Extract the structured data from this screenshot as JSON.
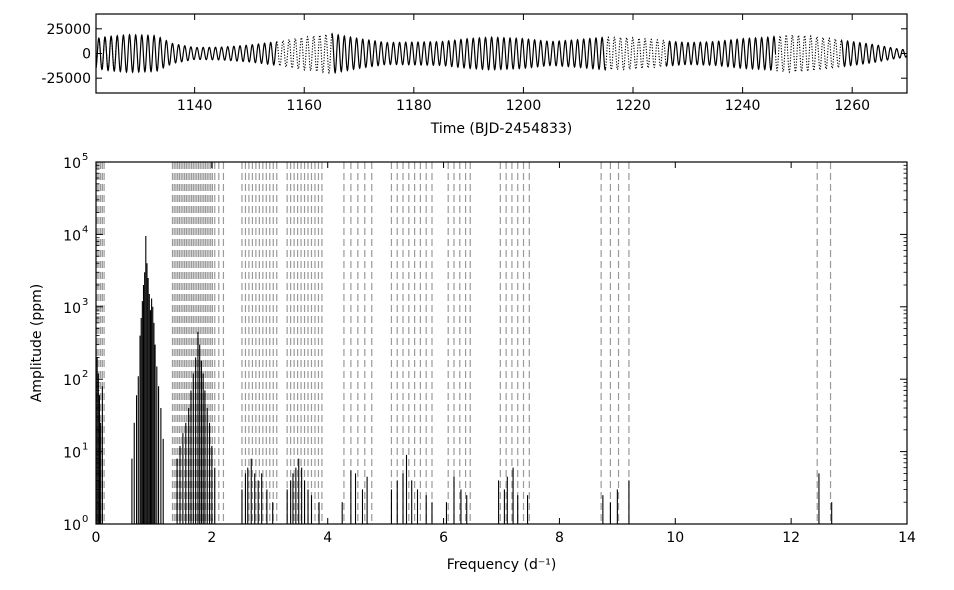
{
  "chart_data": [
    {
      "type": "line",
      "xlabel": "Time (BJD-2454833)",
      "ylabel": "",
      "xlim": [
        1122,
        1270
      ],
      "ylim": [
        -40000,
        40000
      ],
      "xticks": [
        1140,
        1160,
        1180,
        1200,
        1220,
        1240,
        1260
      ],
      "xtick_labels": [
        "1140",
        "1160",
        "1180",
        "1200",
        "1220",
        "1240",
        "1260"
      ],
      "yticks": [
        25000,
        0,
        -25000
      ],
      "ytick_labels": [
        "25000",
        "0",
        "-25000"
      ],
      "series": [
        {
          "style": "solid",
          "color": "#000000",
          "carrier_period_days": 1.12,
          "segments": [
            [
              1122,
              1155
            ],
            [
              1165,
              1215
            ],
            [
              1226,
              1246
            ],
            [
              1258,
              1270
            ]
          ],
          "envelope": [
            [
              1122,
              15000
            ],
            [
              1124,
              17000
            ],
            [
              1128,
              19000
            ],
            [
              1133,
              18000
            ],
            [
              1136,
              10000
            ],
            [
              1140,
              6000
            ],
            [
              1145,
              6500
            ],
            [
              1150,
              8500
            ],
            [
              1155,
              12000
            ],
            [
              1158,
              15000
            ],
            [
              1162,
              18000
            ],
            [
              1165,
              20000
            ],
            [
              1170,
              15000
            ],
            [
              1175,
              11000
            ],
            [
              1180,
              11500
            ],
            [
              1185,
              12000
            ],
            [
              1190,
              15000
            ],
            [
              1194,
              16500
            ],
            [
              1200,
              15000
            ],
            [
              1205,
              12000
            ],
            [
              1210,
              14000
            ],
            [
              1215,
              16500
            ],
            [
              1220,
              16000
            ],
            [
              1225,
              13000
            ],
            [
              1230,
              11000
            ],
            [
              1235,
              12000
            ],
            [
              1240,
              15000
            ],
            [
              1245,
              16500
            ],
            [
              1248,
              19000
            ],
            [
              1252,
              18000
            ],
            [
              1256,
              15000
            ],
            [
              1260,
              12000
            ],
            [
              1264,
              9000
            ],
            [
              1268,
              5000
            ],
            [
              1270,
              3500
            ]
          ]
        },
        {
          "style": "dotted",
          "color": "#000000",
          "carrier_period_days": 1.12,
          "segments": [
            [
              1122,
              1126
            ],
            [
              1155,
              1165
            ],
            [
              1215,
              1226
            ],
            [
              1246,
              1258
            ]
          ],
          "envelope": [
            [
              1122,
              15000
            ],
            [
              1124,
              17000
            ],
            [
              1126,
              18000
            ],
            [
              1155,
              12000
            ],
            [
              1158,
              15000
            ],
            [
              1162,
              18000
            ],
            [
              1165,
              20000
            ],
            [
              1215,
              16500
            ],
            [
              1220,
              16000
            ],
            [
              1226,
              13000
            ],
            [
              1246,
              17000
            ],
            [
              1248,
              19000
            ],
            [
              1252,
              18000
            ],
            [
              1258,
              14000
            ]
          ]
        }
      ]
    },
    {
      "type": "bar",
      "xlabel": "Frequency (d⁻¹)",
      "ylabel": "Amplitude (ppm)",
      "xlim": [
        0,
        14
      ],
      "yscale": "log",
      "ylim": [
        1,
        100000
      ],
      "xticks": [
        0,
        2,
        4,
        6,
        8,
        10,
        12,
        14
      ],
      "xtick_labels": [
        "0",
        "2",
        "4",
        "6",
        "8",
        "10",
        "12",
        "14"
      ],
      "yticks": [
        1,
        10,
        100,
        1000,
        10000,
        100000
      ],
      "ytick_labels": [
        "10",
        "10",
        "10",
        "10",
        "10",
        "10"
      ],
      "ytick_exponents": [
        "0",
        "1",
        "2",
        "3",
        "4",
        "5"
      ],
      "peak_color": "#000000",
      "marker_color": "#9a9a9a",
      "peaks": [
        {
          "f": 0.02,
          "a": 200
        },
        {
          "f": 0.04,
          "a": 120
        },
        {
          "f": 0.06,
          "a": 60
        },
        {
          "f": 0.08,
          "a": 25
        },
        {
          "f": 0.11,
          "a": 80
        },
        {
          "f": 0.62,
          "a": 8
        },
        {
          "f": 0.66,
          "a": 25
        },
        {
          "f": 0.7,
          "a": 60
        },
        {
          "f": 0.73,
          "a": 110
        },
        {
          "f": 0.76,
          "a": 400
        },
        {
          "f": 0.78,
          "a": 700
        },
        {
          "f": 0.8,
          "a": 1200
        },
        {
          "f": 0.82,
          "a": 2000
        },
        {
          "f": 0.84,
          "a": 3000
        },
        {
          "f": 0.86,
          "a": 9500
        },
        {
          "f": 0.88,
          "a": 4000
        },
        {
          "f": 0.9,
          "a": 2500
        },
        {
          "f": 0.92,
          "a": 1500
        },
        {
          "f": 0.94,
          "a": 900
        },
        {
          "f": 0.96,
          "a": 1300
        },
        {
          "f": 0.98,
          "a": 1000
        },
        {
          "f": 1.0,
          "a": 600
        },
        {
          "f": 1.02,
          "a": 300
        },
        {
          "f": 1.05,
          "a": 150
        },
        {
          "f": 1.08,
          "a": 80
        },
        {
          "f": 1.12,
          "a": 40
        },
        {
          "f": 1.16,
          "a": 15
        },
        {
          "f": 1.4,
          "a": 8
        },
        {
          "f": 1.45,
          "a": 12
        },
        {
          "f": 1.5,
          "a": 18
        },
        {
          "f": 1.55,
          "a": 25
        },
        {
          "f": 1.6,
          "a": 40
        },
        {
          "f": 1.64,
          "a": 70
        },
        {
          "f": 1.68,
          "a": 120
        },
        {
          "f": 1.72,
          "a": 200
        },
        {
          "f": 1.76,
          "a": 450
        },
        {
          "f": 1.79,
          "a": 300
        },
        {
          "f": 1.82,
          "a": 180
        },
        {
          "f": 1.85,
          "a": 120
        },
        {
          "f": 1.88,
          "a": 70
        },
        {
          "f": 1.92,
          "a": 40
        },
        {
          "f": 1.96,
          "a": 25
        },
        {
          "f": 2.0,
          "a": 12
        },
        {
          "f": 2.05,
          "a": 6
        },
        {
          "f": 2.52,
          "a": 3
        },
        {
          "f": 2.58,
          "a": 5
        },
        {
          "f": 2.62,
          "a": 6
        },
        {
          "f": 2.68,
          "a": 8
        },
        {
          "f": 2.74,
          "a": 5
        },
        {
          "f": 2.8,
          "a": 4
        },
        {
          "f": 2.86,
          "a": 5
        },
        {
          "f": 2.95,
          "a": 3
        },
        {
          "f": 3.05,
          "a": 2
        },
        {
          "f": 3.3,
          "a": 3
        },
        {
          "f": 3.36,
          "a": 4
        },
        {
          "f": 3.4,
          "a": 5
        },
        {
          "f": 3.45,
          "a": 6
        },
        {
          "f": 3.5,
          "a": 8
        },
        {
          "f": 3.55,
          "a": 6
        },
        {
          "f": 3.6,
          "a": 4
        },
        {
          "f": 3.66,
          "a": 3
        },
        {
          "f": 3.72,
          "a": 2.5
        },
        {
          "f": 3.85,
          "a": 2
        },
        {
          "f": 4.25,
          "a": 2
        },
        {
          "f": 4.4,
          "a": 5.5
        },
        {
          "f": 4.48,
          "a": 5
        },
        {
          "f": 4.6,
          "a": 3
        },
        {
          "f": 4.68,
          "a": 4.5
        },
        {
          "f": 5.1,
          "a": 3
        },
        {
          "f": 5.2,
          "a": 4
        },
        {
          "f": 5.3,
          "a": 5
        },
        {
          "f": 5.36,
          "a": 9
        },
        {
          "f": 5.45,
          "a": 4
        },
        {
          "f": 5.55,
          "a": 3
        },
        {
          "f": 5.7,
          "a": 2.5
        },
        {
          "f": 5.8,
          "a": 2
        },
        {
          "f": 6.05,
          "a": 2
        },
        {
          "f": 6.18,
          "a": 4.5
        },
        {
          "f": 6.3,
          "a": 3
        },
        {
          "f": 6.4,
          "a": 2.5
        },
        {
          "f": 6.95,
          "a": 4
        },
        {
          "f": 7.05,
          "a": 3
        },
        {
          "f": 7.1,
          "a": 4.5
        },
        {
          "f": 7.2,
          "a": 6
        },
        {
          "f": 7.28,
          "a": 2.5
        },
        {
          "f": 7.45,
          "a": 2.5
        },
        {
          "f": 8.75,
          "a": 2.5
        },
        {
          "f": 8.88,
          "a": 2
        },
        {
          "f": 9.0,
          "a": 3
        },
        {
          "f": 9.2,
          "a": 4
        },
        {
          "f": 12.48,
          "a": 5
        },
        {
          "f": 12.7,
          "a": 2
        }
      ],
      "markers": [
        0.02,
        0.05,
        0.08,
        0.11,
        0.14,
        1.32,
        1.35,
        1.38,
        1.41,
        1.44,
        1.47,
        1.5,
        1.53,
        1.56,
        1.59,
        1.62,
        1.65,
        1.68,
        1.71,
        1.74,
        1.77,
        1.8,
        1.83,
        1.86,
        1.89,
        1.92,
        1.95,
        1.98,
        2.01,
        2.05,
        2.12,
        2.2,
        2.52,
        2.58,
        2.64,
        2.7,
        2.76,
        2.82,
        2.88,
        2.94,
        3.0,
        3.06,
        3.12,
        3.3,
        3.36,
        3.42,
        3.48,
        3.54,
        3.6,
        3.66,
        3.72,
        3.78,
        3.84,
        3.9,
        4.28,
        4.4,
        4.52,
        4.64,
        4.76,
        5.1,
        5.2,
        5.3,
        5.4,
        5.5,
        5.6,
        5.7,
        5.8,
        6.08,
        6.18,
        6.28,
        6.38,
        6.46,
        6.98,
        7.08,
        7.18,
        7.28,
        7.38,
        7.48,
        8.72,
        8.88,
        9.02,
        9.2,
        12.45,
        12.68
      ]
    }
  ]
}
